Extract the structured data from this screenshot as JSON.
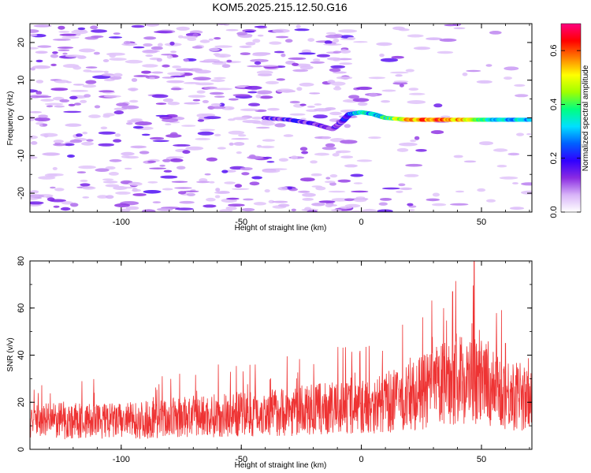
{
  "title": "KOM5.2025.215.12.50.G16",
  "chart_data": [
    {
      "type": "heatmap",
      "xlabel": "Height of straight line (km)",
      "ylabel": "Frequency (Hz)",
      "xlim": [
        -138,
        71
      ],
      "ylim": [
        -25,
        25
      ],
      "x_ticks": [
        -100,
        -50,
        0,
        50
      ],
      "y_ticks": [
        -20,
        -10,
        0,
        10,
        20
      ],
      "grid": false,
      "colorbar": {
        "label": "Normalized spectral amplitude",
        "range": [
          0.0,
          0.7
        ],
        "ticks": [
          0.0,
          0.2,
          0.4,
          0.6
        ],
        "colormap": [
          "#ffffff",
          "#d8b4f8",
          "#8a2be2",
          "#3000ff",
          "#0060ff",
          "#00e0ff",
          "#00ff80",
          "#a0ff00",
          "#ffff00",
          "#ff8000",
          "#ff0000",
          "#ff0080"
        ]
      },
      "signal_track": [
        {
          "x": -40,
          "freq": 0.0,
          "amp": 0.15
        },
        {
          "x": -30,
          "freq": -0.5,
          "amp": 0.15
        },
        {
          "x": -20,
          "freq": -1.5,
          "amp": 0.12
        },
        {
          "x": -12,
          "freq": -3.0,
          "amp": 0.12
        },
        {
          "x": -8,
          "freq": -1.0,
          "amp": 0.15
        },
        {
          "x": -5,
          "freq": 1.0,
          "amp": 0.2
        },
        {
          "x": 0,
          "freq": 1.5,
          "amp": 0.35
        },
        {
          "x": 5,
          "freq": 1.0,
          "amp": 0.3
        },
        {
          "x": 10,
          "freq": 0.0,
          "amp": 0.35
        },
        {
          "x": 20,
          "freq": -0.5,
          "amp": 0.55
        },
        {
          "x": 30,
          "freq": -0.5,
          "amp": 0.6
        },
        {
          "x": 40,
          "freq": -0.5,
          "amp": 0.55
        },
        {
          "x": 50,
          "freq": -0.5,
          "amp": 0.4
        },
        {
          "x": 60,
          "freq": -0.5,
          "amp": 0.3
        },
        {
          "x": 71,
          "freq": -0.5,
          "amp": 0.3
        }
      ]
    },
    {
      "type": "line",
      "xlabel": "Height of straight line (km)",
      "ylabel": "SNR (v/v)",
      "xlim": [
        -138,
        71
      ],
      "ylim": [
        0,
        80
      ],
      "x_ticks": [
        -100,
        -50,
        0,
        50
      ],
      "y_ticks": [
        0,
        20,
        40,
        60,
        80
      ],
      "grid": false,
      "series": [
        {
          "color": "#ee3333",
          "baseline": [
            {
              "x": -138,
              "y": 12
            },
            {
              "x": -100,
              "y": 12
            },
            {
              "x": -50,
              "y": 15
            },
            {
              "x": 0,
              "y": 18
            },
            {
              "x": 20,
              "y": 22
            },
            {
              "x": 40,
              "y": 30
            },
            {
              "x": 50,
              "y": 28
            },
            {
              "x": 71,
              "y": 20
            }
          ],
          "peaks": [
            {
              "x": 38,
              "y": 67
            },
            {
              "x": 47,
              "y": 80
            },
            {
              "x": 60,
              "y": 45
            }
          ]
        }
      ]
    }
  ]
}
